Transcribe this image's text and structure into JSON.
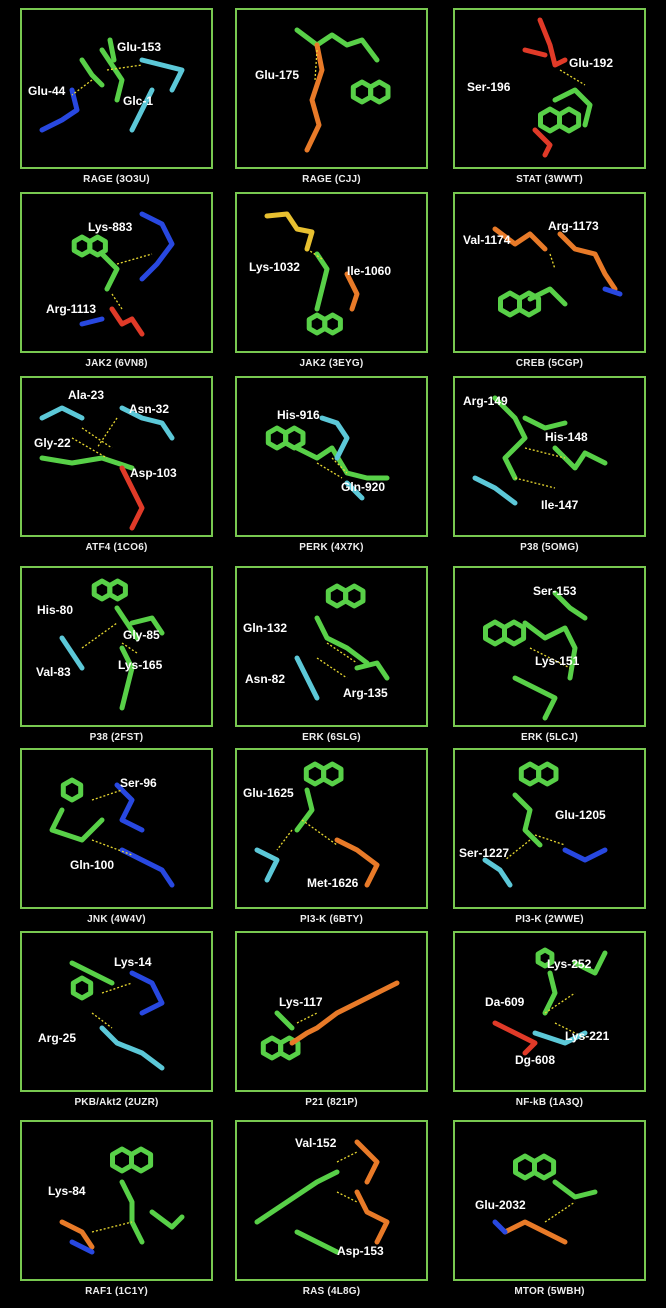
{
  "colors": {
    "frame": "#78c850",
    "ligand": "#58d048",
    "cyan": "#5cc8d8",
    "blue": "#2848e0",
    "red": "#e03a28",
    "orange": "#e87a28",
    "yellow": "#e8c030",
    "hbond": "#e8d830"
  },
  "panels": [
    {
      "caption": "RAGE (3O3U)",
      "labels": [
        "Glu-153",
        "Glu-44",
        "Glc-1"
      ]
    },
    {
      "caption": "RAGE (CJJ)",
      "labels": [
        "Glu-175"
      ]
    },
    {
      "caption": "STAT (3WWT)",
      "labels": [
        "Glu-192",
        "Ser-196"
      ]
    },
    {
      "caption": "JAK2 (6VN8)",
      "labels": [
        "Lys-883",
        "Arg-1113"
      ]
    },
    {
      "caption": "JAK2 (3EYG)",
      "labels": [
        "Lys-1032",
        "Ile-1060"
      ]
    },
    {
      "caption": "CREB (5CGP)",
      "labels": [
        "Val-1174",
        "Arg-1173"
      ]
    },
    {
      "caption": "ATF4 (1CO6)",
      "labels": [
        "Ala-23",
        "Asn-32",
        "Gly-22",
        "Asp-103"
      ]
    },
    {
      "caption": "PERK (4X7K)",
      "labels": [
        "His-916",
        "Gln-920"
      ]
    },
    {
      "caption": "P38 (5OMG)",
      "labels": [
        "Arg-149",
        "His-148",
        "Ile-147"
      ]
    },
    {
      "caption": "P38 (2FST)",
      "labels": [
        "His-80",
        "Gly-85",
        "Val-83",
        "Lys-165"
      ]
    },
    {
      "caption": "ERK (6SLG)",
      "labels": [
        "Gln-132",
        "Asn-82",
        "Arg-135"
      ]
    },
    {
      "caption": "ERK (5LCJ)",
      "labels": [
        "Ser-153",
        "Lys-151"
      ]
    },
    {
      "caption": "JNK (4W4V)",
      "labels": [
        "Ser-96",
        "Gln-100"
      ]
    },
    {
      "caption": "PI3-K (6BTY)",
      "labels": [
        "Glu-1625",
        "Met-1626"
      ]
    },
    {
      "caption": "PI3-K (2WWE)",
      "labels": [
        "Glu-1205",
        "Ser-1227"
      ]
    },
    {
      "caption": "PKB/Akt2 (2UZR)",
      "labels": [
        "Lys-14",
        "Arg-25"
      ]
    },
    {
      "caption": "P21 (821P)",
      "labels": [
        "Lys-117"
      ]
    },
    {
      "caption": "NF-kB (1A3Q)",
      "labels": [
        "Lys-252",
        "Da-609",
        "Lys-221",
        "Dg-608"
      ]
    },
    {
      "caption": "RAF1 (1C1Y)",
      "labels": [
        "Lys-84"
      ]
    },
    {
      "caption": "RAS (4L8G)",
      "labels": [
        "Val-152",
        "Asp-153"
      ]
    },
    {
      "caption": "MTOR (5WBH)",
      "labels": [
        "Glu-2032"
      ]
    }
  ]
}
